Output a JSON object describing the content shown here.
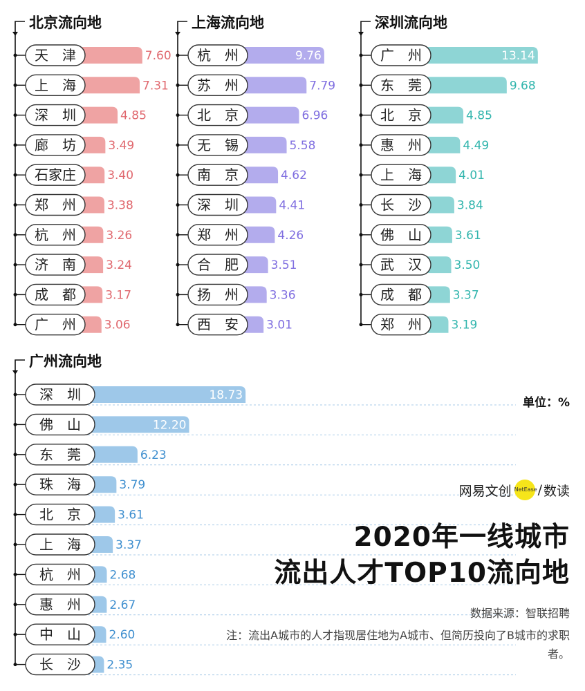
{
  "chart_data": [
    {
      "type": "bar",
      "title": "北京流向地",
      "color": "#efa3a3",
      "value_color": "#e0686e",
      "categories": [
        "天　津",
        "上　海",
        "深　圳",
        "廊　坊",
        "石家庄",
        "郑　州",
        "杭　州",
        "济　南",
        "成　都",
        "广　州"
      ],
      "values": [
        7.6,
        7.31,
        4.85,
        3.49,
        3.4,
        3.38,
        3.26,
        3.24,
        3.17,
        3.06
      ],
      "labels": [
        "7.60",
        "7.31",
        "4.85",
        "3.49",
        "3.40",
        "3.38",
        "3.26",
        "3.24",
        "3.17",
        "3.06"
      ]
    },
    {
      "type": "bar",
      "title": "上海流向地",
      "color": "#b3aced",
      "value_color": "#7f6ee0",
      "categories": [
        "杭　州",
        "苏　州",
        "北　京",
        "无　锡",
        "南　京",
        "深　圳",
        "郑　州",
        "合　肥",
        "扬　州",
        "西　安"
      ],
      "values": [
        9.76,
        7.79,
        6.96,
        5.58,
        4.62,
        4.41,
        4.26,
        3.51,
        3.36,
        3.01
      ],
      "labels": [
        "9.76",
        "7.79",
        "6.96",
        "5.58",
        "4.62",
        "4.41",
        "4.26",
        "3.51",
        "3.36",
        "3.01"
      ]
    },
    {
      "type": "bar",
      "title": "深圳流向地",
      "color": "#8ed5d5",
      "value_color": "#31b5ad",
      "categories": [
        "广　州",
        "东　莞",
        "北　京",
        "惠　州",
        "上　海",
        "长　沙",
        "佛　山",
        "武　汉",
        "成　都",
        "郑　州"
      ],
      "values": [
        13.14,
        9.68,
        4.85,
        4.49,
        4.01,
        3.84,
        3.61,
        3.5,
        3.37,
        3.19
      ],
      "labels": [
        "13.14",
        "9.68",
        "4.85",
        "4.49",
        "4.01",
        "3.84",
        "3.61",
        "3.50",
        "3.37",
        "3.19"
      ]
    },
    {
      "type": "bar",
      "title": "广州流向地",
      "color": "#9ec8e9",
      "value_color": "#3f8fcf",
      "categories": [
        "深　圳",
        "佛　山",
        "东　莞",
        "珠　海",
        "北　京",
        "上　海",
        "杭　州",
        "惠　州",
        "中　山",
        "长　沙"
      ],
      "values": [
        18.73,
        12.2,
        6.23,
        3.79,
        3.61,
        3.37,
        2.68,
        2.67,
        2.6,
        2.35
      ],
      "labels": [
        "18.73",
        "12.20",
        "6.23",
        "3.79",
        "3.61",
        "3.37",
        "2.68",
        "2.67",
        "2.60",
        "2.35"
      ]
    }
  ],
  "unit_label": "单位：%",
  "brand": {
    "name": "网易文创",
    "badge": "NetEase",
    "sep": "/",
    "sub": "数读"
  },
  "headline": {
    "line1": "2020年一线城市",
    "line2": "流出人才TOP10流向地"
  },
  "source": "数据来源：智联招聘",
  "note": "注：流出A城市的人才指现居住地为A城市、但简历投向了B城市的求职者。"
}
